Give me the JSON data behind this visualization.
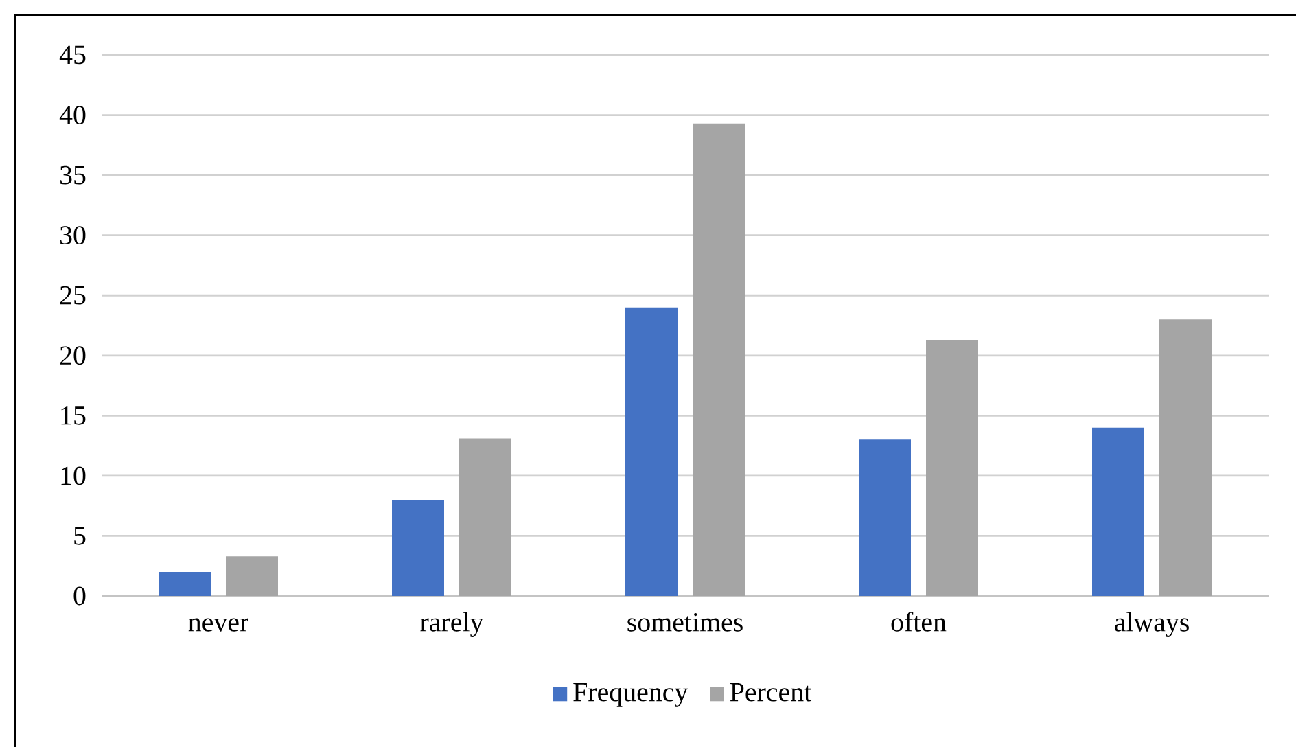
{
  "chart_data": {
    "type": "bar",
    "categories": [
      "never",
      "rarely",
      "sometimes",
      "often",
      "always"
    ],
    "series": [
      {
        "name": "Frequency",
        "color": "#4472c4",
        "values": [
          2,
          8,
          24,
          13,
          14
        ]
      },
      {
        "name": "Percent",
        "color": "#a5a5a5",
        "values": [
          3.3,
          13.1,
          39.3,
          21.3,
          23.0
        ]
      }
    ],
    "ylim": [
      0,
      45
    ],
    "yticks": [
      0,
      5,
      10,
      15,
      20,
      25,
      30,
      35,
      40,
      45
    ],
    "grid": "y",
    "legend": "bottom"
  }
}
